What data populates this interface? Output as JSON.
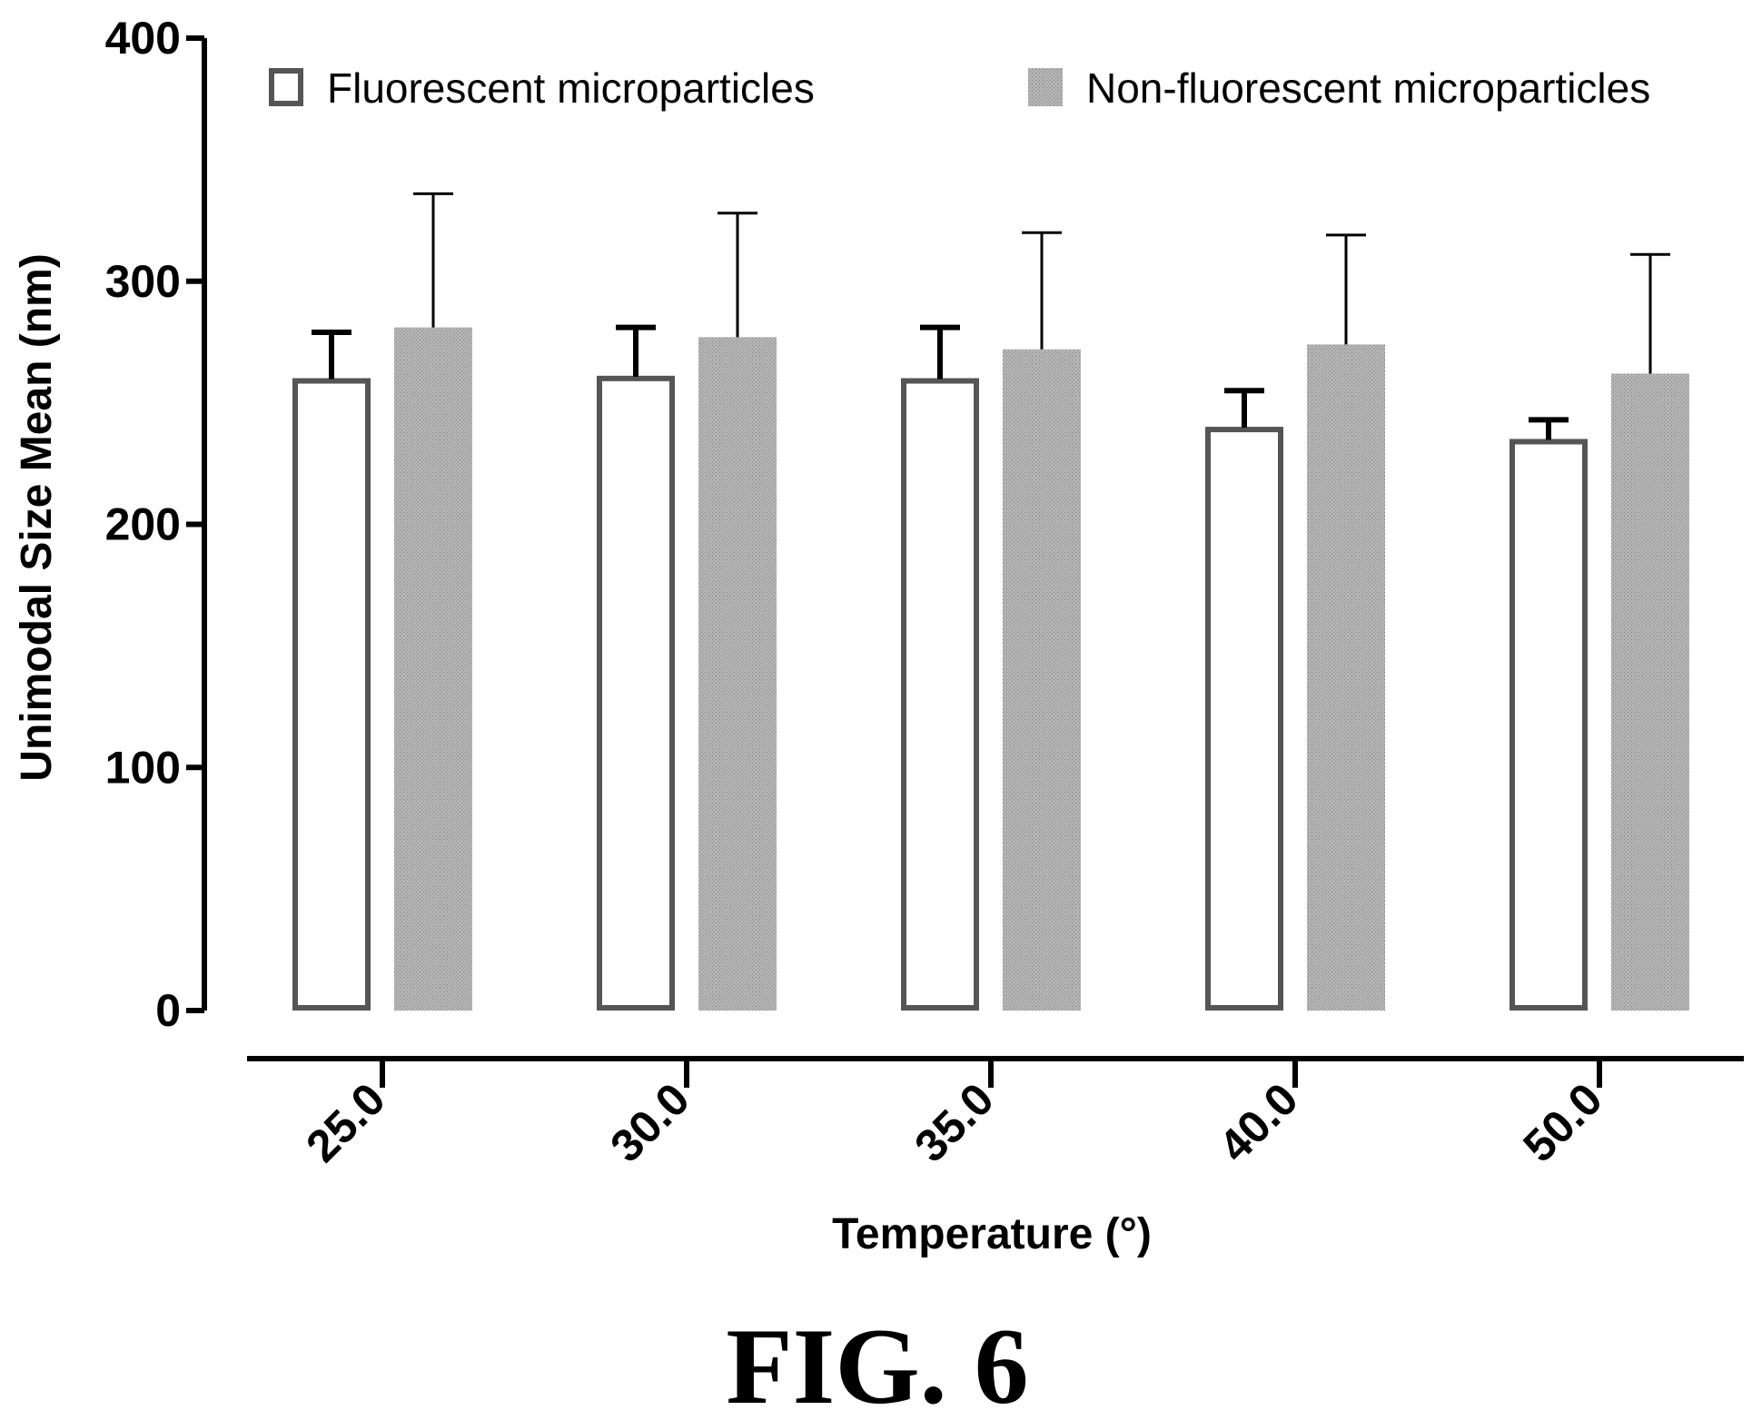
{
  "chart_data": {
    "type": "bar",
    "title": "",
    "xlabel": "Temperature (°)",
    "ylabel": "Unimodal Size Mean (nm)",
    "categories": [
      "25.0",
      "30.0",
      "35.0",
      "40.0",
      "50.0"
    ],
    "ylim": [
      0,
      400
    ],
    "yticks": [
      0,
      100,
      200,
      300,
      400
    ],
    "grid": false,
    "legend_position": "top",
    "series": [
      {
        "name": "Fluorescent microparticles",
        "values": [
          259,
          260,
          259,
          239,
          234
        ],
        "error_upper": [
          279,
          281,
          281,
          255,
          243
        ],
        "fill": "#ffffff",
        "stroke": "#555555"
      },
      {
        "name": "Non-fluorescent microparticles",
        "values": [
          281,
          277,
          272,
          274,
          262
        ],
        "error_upper": [
          336,
          328,
          320,
          319,
          311
        ],
        "fill": "#a9a9a9",
        "stroke": "#a9a9a9"
      }
    ]
  },
  "caption": "FIG. 6"
}
